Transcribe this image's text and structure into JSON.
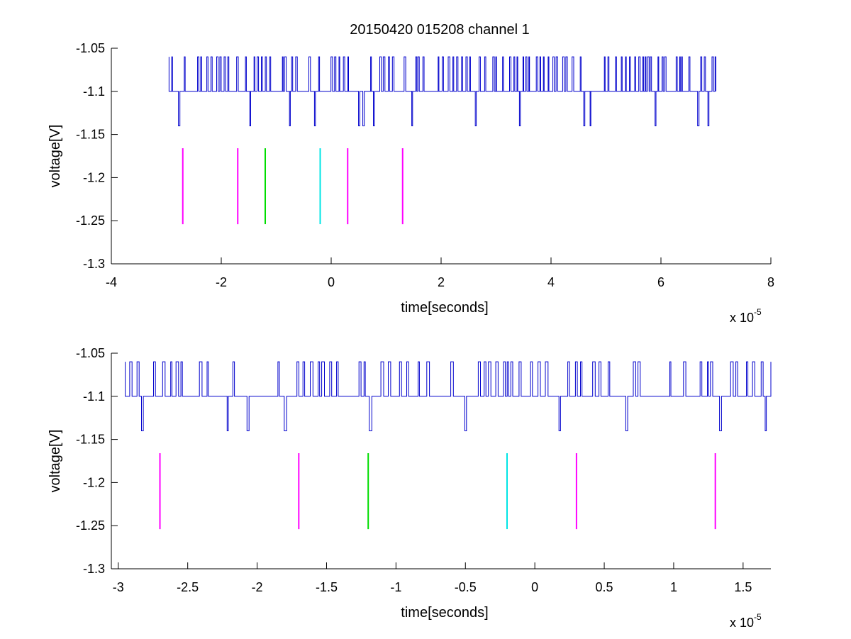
{
  "figure": {
    "title": "20150420 015208 channel 1"
  },
  "chart_data": [
    {
      "type": "line",
      "xlabel": "time[seconds]",
      "ylabel": "voltage[V]",
      "x_multiplier_label": "x 10",
      "x_multiplier_exponent": "-5",
      "xlim": [
        -4,
        8
      ],
      "ylim": [
        -1.3,
        -1.05
      ],
      "xticks": [
        -4,
        -2,
        0,
        2,
        4,
        6,
        8
      ],
      "xtick_labels": [
        "-4",
        "-2",
        "0",
        "2",
        "4",
        "6",
        "8"
      ],
      "yticks": [
        -1.3,
        -1.25,
        -1.2,
        -1.15,
        -1.1,
        -1.05
      ],
      "ytick_labels": [
        "-1.3",
        "-1.25",
        "-1.2",
        "-1.15",
        "-1.1",
        "-1.05"
      ],
      "grid": false,
      "signal": {
        "color": "#0000cc",
        "x_range": [
          -2.95,
          7.0
        ],
        "levels": [
          -1.06,
          -1.1,
          -1.14
        ],
        "baseline": -1.1
      },
      "markers": [
        {
          "x": -2.7,
          "y": [
            -1.254,
            -1.166
          ],
          "color": "#ff00ff"
        },
        {
          "x": -1.7,
          "y": [
            -1.254,
            -1.166
          ],
          "color": "#ff00ff"
        },
        {
          "x": -1.2,
          "y": [
            -1.254,
            -1.166
          ],
          "color": "#00dd00"
        },
        {
          "x": -0.2,
          "y": [
            -1.254,
            -1.166
          ],
          "color": "#00e5e5"
        },
        {
          "x": 0.3,
          "y": [
            -1.254,
            -1.166
          ],
          "color": "#ff00ff"
        },
        {
          "x": 1.3,
          "y": [
            -1.254,
            -1.166
          ],
          "color": "#ff00ff"
        }
      ]
    },
    {
      "type": "line",
      "xlabel": "time[seconds]",
      "ylabel": "voltage[V]",
      "x_multiplier_label": "x 10",
      "x_multiplier_exponent": "-5",
      "xlim": [
        -3.05,
        1.7
      ],
      "ylim": [
        -1.3,
        -1.05
      ],
      "xticks": [
        -3,
        -2.5,
        -2,
        -1.5,
        -1,
        -0.5,
        0,
        0.5,
        1,
        1.5
      ],
      "xtick_labels": [
        "-3",
        "-2.5",
        "-2",
        "-1.5",
        "-1",
        "-0.5",
        "0",
        "0.5",
        "1",
        "1.5"
      ],
      "yticks": [
        -1.3,
        -1.25,
        -1.2,
        -1.15,
        -1.1,
        -1.05
      ],
      "ytick_labels": [
        "-1.3",
        "-1.25",
        "-1.2",
        "-1.15",
        "-1.1",
        "-1.05"
      ],
      "grid": false,
      "signal": {
        "color": "#0000cc",
        "x_range": [
          -2.95,
          1.7
        ],
        "levels": [
          -1.06,
          -1.1,
          -1.14
        ],
        "baseline": -1.1
      },
      "markers": [
        {
          "x": -2.7,
          "y": [
            -1.254,
            -1.166
          ],
          "color": "#ff00ff"
        },
        {
          "x": -1.7,
          "y": [
            -1.254,
            -1.166
          ],
          "color": "#ff00ff"
        },
        {
          "x": -1.2,
          "y": [
            -1.254,
            -1.166
          ],
          "color": "#00dd00"
        },
        {
          "x": -0.2,
          "y": [
            -1.254,
            -1.166
          ],
          "color": "#00e5e5"
        },
        {
          "x": 0.3,
          "y": [
            -1.254,
            -1.166
          ],
          "color": "#ff00ff"
        },
        {
          "x": 1.3,
          "y": [
            -1.254,
            -1.166
          ],
          "color": "#ff00ff"
        }
      ]
    }
  ]
}
